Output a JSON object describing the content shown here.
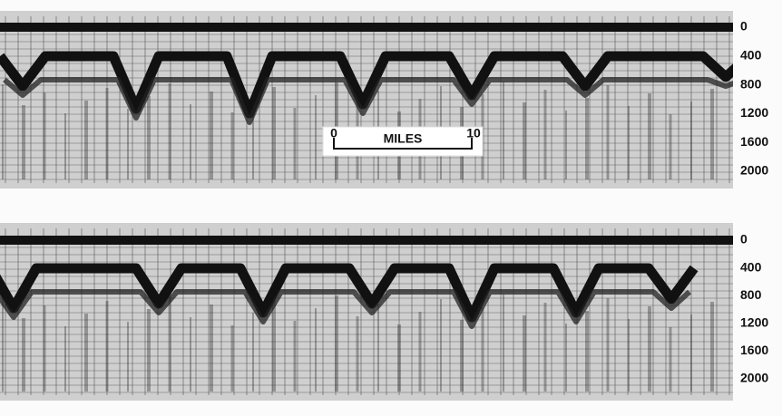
{
  "panels": [
    {
      "depth_labels": [
        "0",
        "400",
        "800",
        "1200",
        "1600",
        "2000"
      ]
    },
    {
      "depth_labels": [
        "0",
        "400",
        "800",
        "1200",
        "1600",
        "2000"
      ]
    }
  ],
  "scale_bar": {
    "start": "0",
    "label": "MILES",
    "end": "10"
  }
}
